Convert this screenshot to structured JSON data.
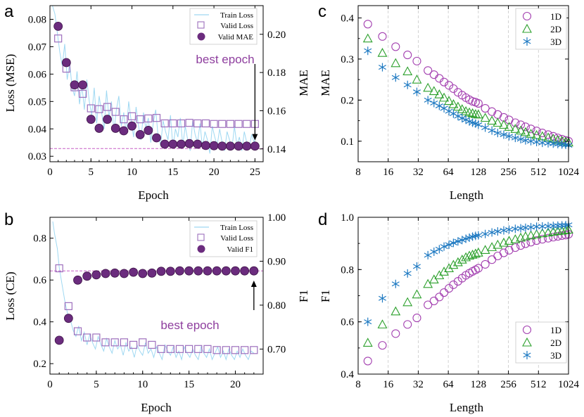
{
  "colors": {
    "purple": "#7a3b8f",
    "marker_fill": "#6b2c7e",
    "square_edge": "#9d6fbd",
    "train_line": "#9fd8f2",
    "hline": "#c65fc6",
    "arrow": "#000000",
    "annot": "#8e3e9e",
    "green": "#2ca02c",
    "blue": "#1f7ac2",
    "circle_edge": "#a33fb0",
    "vgrid": "#c8c8c8"
  },
  "chart_data": [
    {
      "panel": "a",
      "type": "line+scatter",
      "xlabel": "Epoch",
      "ylabel_left": "Loss (MSE)",
      "ylabel_right": "MAE",
      "xlim": [
        0,
        26
      ],
      "ylim_left": [
        0.028,
        0.085
      ],
      "ylim_right": [
        0.1333,
        0.215
      ],
      "xticks": [
        0,
        5,
        10,
        15,
        20,
        25
      ],
      "yticks_left": [
        0.03,
        0.04,
        0.05,
        0.06,
        0.07,
        0.08
      ],
      "yticks_right": [
        0.14,
        0.16,
        0.18,
        0.2
      ],
      "legend": [
        "Train Loss",
        "Valid Loss",
        "Valid MAE"
      ],
      "epochs": [
        1,
        2,
        3,
        4,
        5,
        6,
        7,
        8,
        9,
        10,
        11,
        12,
        13,
        14,
        15,
        16,
        17,
        18,
        19,
        20,
        21,
        22,
        23,
        24,
        25
      ],
      "valid_loss": [
        0.073,
        0.062,
        0.0552,
        0.0528,
        0.0475,
        0.0472,
        0.048,
        0.0462,
        0.0435,
        0.0446,
        0.0435,
        0.0438,
        0.044,
        0.042,
        0.042,
        0.042,
        0.0422,
        0.042,
        0.042,
        0.0418,
        0.0418,
        0.0418,
        0.0418,
        0.0418,
        0.0418
      ],
      "valid_mae": [
        0.2042,
        0.1852,
        0.1735,
        0.1735,
        0.1555,
        0.1508,
        0.1555,
        0.1508,
        0.1495,
        0.152,
        0.1475,
        0.1497,
        0.1458,
        0.1425,
        0.1425,
        0.1425,
        0.1428,
        0.1425,
        0.1418,
        0.1417,
        0.1415,
        0.1415,
        0.1415,
        0.1415,
        0.1415
      ],
      "train_loss_x": [
        0.3,
        0.6,
        0.9,
        1.2,
        1.5,
        1.8,
        2.1,
        2.4,
        2.7,
        3.0,
        3.3,
        3.6,
        3.9,
        4.2,
        4.5,
        4.8,
        5.1,
        5.4,
        5.7,
        6.0,
        6.3,
        6.6,
        6.9,
        7.2,
        7.5,
        7.8,
        8.1,
        8.4,
        8.7,
        9.0,
        9.3,
        9.6,
        9.9,
        10.2,
        10.5,
        10.8,
        11.1,
        11.4,
        11.7,
        12.0,
        12.3,
        12.6,
        12.9,
        13.2,
        13.5,
        13.8,
        14.1,
        14.4,
        14.7,
        15.0,
        15.3,
        15.6,
        15.9,
        16.2,
        16.5,
        16.8,
        17.1,
        17.4,
        17.7,
        18.0,
        18.3,
        18.6,
        18.9,
        19.2,
        19.5,
        19.8,
        20.1,
        20.4,
        20.7,
        21.0,
        21.3,
        21.6,
        21.9,
        22.2,
        22.5,
        22.8,
        23.1,
        23.4,
        23.7,
        24.0,
        24.3,
        24.6,
        24.9,
        25.0
      ],
      "train_loss_y": [
        0.085,
        0.082,
        0.075,
        0.068,
        0.063,
        0.071,
        0.058,
        0.064,
        0.055,
        0.052,
        0.061,
        0.049,
        0.056,
        0.047,
        0.058,
        0.05,
        0.045,
        0.055,
        0.042,
        0.052,
        0.046,
        0.04,
        0.054,
        0.044,
        0.05,
        0.039,
        0.047,
        0.052,
        0.041,
        0.046,
        0.038,
        0.05,
        0.043,
        0.037,
        0.048,
        0.041,
        0.036,
        0.046,
        0.04,
        0.044,
        0.035,
        0.042,
        0.047,
        0.037,
        0.034,
        0.043,
        0.039,
        0.036,
        0.045,
        0.033,
        0.04,
        0.037,
        0.044,
        0.034,
        0.041,
        0.036,
        0.032,
        0.043,
        0.038,
        0.035,
        0.042,
        0.033,
        0.039,
        0.036,
        0.031,
        0.041,
        0.037,
        0.034,
        0.04,
        0.035,
        0.032,
        0.039,
        0.036,
        0.033,
        0.041,
        0.034,
        0.037,
        0.032,
        0.039,
        0.035,
        0.033,
        0.038,
        0.035,
        0.036
      ],
      "best_line_y": 0.0328,
      "annotation": {
        "text": "best epoch",
        "target_epoch": 25,
        "target_y": 0.034
      }
    },
    {
      "panel": "b",
      "type": "line+scatter",
      "xlabel": "Epoch",
      "ylabel_left": "Loss (CE)",
      "ylabel_right": "F1",
      "xlim": [
        0,
        23
      ],
      "ylim_left": [
        0.15,
        0.9
      ],
      "ylim_right": [
        0.643,
        1.0
      ],
      "xticks": [
        0,
        5,
        10,
        15,
        20
      ],
      "yticks_left": [
        0.2,
        0.4,
        0.6,
        0.8
      ],
      "yticks_right": [
        0.7,
        0.8,
        0.9,
        1.0
      ],
      "legend": [
        "Train Loss",
        "Valid Loss",
        "Valid F1"
      ],
      "epochs": [
        1,
        2,
        3,
        4,
        5,
        6,
        7,
        8,
        9,
        10,
        11,
        12,
        13,
        14,
        15,
        16,
        17,
        18,
        19,
        20,
        21,
        22
      ],
      "valid_loss": [
        0.656,
        0.475,
        0.355,
        0.325,
        0.325,
        0.302,
        0.302,
        0.302,
        0.29,
        0.302,
        0.29,
        0.27,
        0.27,
        0.27,
        0.27,
        0.27,
        0.27,
        0.265,
        0.265,
        0.265,
        0.265,
        0.265
      ],
      "valid_f1": [
        0.72,
        0.77,
        0.857,
        0.866,
        0.869,
        0.872,
        0.873,
        0.872,
        0.875,
        0.872,
        0.873,
        0.877,
        0.877,
        0.878,
        0.878,
        0.878,
        0.878,
        0.878,
        0.878,
        0.878,
        0.878,
        0.878
      ],
      "train_loss_x": [
        0.3,
        0.5,
        0.8,
        1.0,
        1.3,
        1.6,
        1.9,
        2.2,
        2.5,
        2.8,
        3.1,
        3.4,
        3.7,
        4.0,
        4.3,
        4.6,
        4.9,
        5.2,
        5.5,
        5.8,
        6.1,
        6.4,
        6.7,
        7.0,
        7.3,
        7.6,
        7.9,
        8.2,
        8.5,
        8.8,
        9.1,
        9.4,
        9.7,
        10.0,
        10.3,
        10.6,
        10.9,
        11.2,
        11.5,
        11.8,
        12.1,
        12.4,
        12.7,
        13.0,
        13.3,
        13.6,
        13.9,
        14.2,
        14.5,
        14.8,
        15.1,
        15.4,
        15.7,
        16.0,
        16.3,
        16.6,
        16.9,
        17.2,
        17.5,
        17.8,
        18.1,
        18.4,
        18.7,
        19.0,
        19.3,
        19.6,
        19.9,
        20.2,
        20.5,
        20.8,
        21.1,
        21.4,
        21.7,
        22.0
      ],
      "train_loss_y": [
        0.88,
        0.82,
        0.75,
        0.66,
        0.58,
        0.5,
        0.44,
        0.41,
        0.36,
        0.33,
        0.38,
        0.31,
        0.35,
        0.29,
        0.34,
        0.3,
        0.27,
        0.33,
        0.29,
        0.26,
        0.32,
        0.28,
        0.25,
        0.31,
        0.27,
        0.29,
        0.24,
        0.3,
        0.26,
        0.28,
        0.23,
        0.29,
        0.26,
        0.24,
        0.3,
        0.25,
        0.27,
        0.23,
        0.28,
        0.25,
        0.22,
        0.29,
        0.26,
        0.24,
        0.28,
        0.23,
        0.26,
        0.22,
        0.28,
        0.25,
        0.23,
        0.27,
        0.24,
        0.22,
        0.28,
        0.25,
        0.23,
        0.27,
        0.22,
        0.25,
        0.28,
        0.23,
        0.26,
        0.22,
        0.27,
        0.24,
        0.22,
        0.26,
        0.23,
        0.27,
        0.24,
        0.22,
        0.26,
        0.25
      ],
      "best_line_y": 0.878,
      "annotation": {
        "text": "best epoch",
        "target_epoch": 22,
        "target_y": 0.872
      }
    },
    {
      "panel": "c",
      "type": "scatter",
      "xscale": "log2",
      "xlabel": "Length",
      "ylabel": "MAE",
      "xlim": [
        8,
        1024
      ],
      "ylim": [
        0.05,
        0.43
      ],
      "xtick_values": [
        8,
        16,
        32,
        64,
        128,
        256,
        512,
        1024
      ],
      "xtick_labels": [
        "8",
        "16",
        "32",
        "64",
        "128",
        "256",
        "512",
        "1024"
      ],
      "yticks": [
        0.1,
        0.2,
        0.3,
        0.4
      ],
      "legend": [
        "1D",
        "2D",
        "3D"
      ],
      "legend_position": "top-right",
      "x": [
        10,
        14,
        19,
        25,
        31,
        40,
        46,
        52,
        58,
        65,
        72,
        80,
        88,
        96,
        104,
        112,
        120,
        128,
        150,
        175,
        200,
        230,
        260,
        300,
        340,
        380,
        430,
        490,
        560,
        640,
        720,
        800,
        880,
        960,
        1024
      ],
      "series": [
        {
          "name": "1D",
          "marker": "circle",
          "values": [
            0.385,
            0.355,
            0.33,
            0.31,
            0.295,
            0.272,
            0.262,
            0.253,
            0.244,
            0.236,
            0.228,
            0.219,
            0.212,
            0.206,
            0.201,
            0.197,
            0.195,
            0.192,
            0.18,
            0.172,
            0.165,
            0.158,
            0.152,
            0.145,
            0.14,
            0.135,
            0.13,
            0.125,
            0.12,
            0.116,
            0.112,
            0.108,
            0.105,
            0.102,
            0.1
          ]
        },
        {
          "name": "2D",
          "marker": "triangle",
          "values": [
            0.35,
            0.315,
            0.29,
            0.27,
            0.25,
            0.23,
            0.222,
            0.214,
            0.206,
            0.198,
            0.19,
            0.184,
            0.178,
            0.173,
            0.17,
            0.168,
            0.166,
            0.165,
            0.157,
            0.15,
            0.145,
            0.14,
            0.135,
            0.13,
            0.126,
            0.122,
            0.118,
            0.115,
            0.112,
            0.109,
            0.106,
            0.103,
            0.101,
            0.099,
            0.097
          ]
        },
        {
          "name": "3D",
          "marker": "asterisk",
          "values": [
            0.32,
            0.28,
            0.255,
            0.237,
            0.22,
            0.2,
            0.193,
            0.186,
            0.18,
            0.173,
            0.167,
            0.161,
            0.156,
            0.152,
            0.148,
            0.145,
            0.143,
            0.14,
            0.133,
            0.126,
            0.12,
            0.116,
            0.112,
            0.108,
            0.105,
            0.102,
            0.1,
            0.098,
            0.096,
            0.095,
            0.094,
            0.093,
            0.092,
            0.091,
            0.09
          ]
        }
      ]
    },
    {
      "panel": "d",
      "type": "scatter",
      "xscale": "log2",
      "xlabel": "Length",
      "ylabel": "F1",
      "xlim": [
        8,
        1024
      ],
      "ylim": [
        0.4,
        1.0
      ],
      "xtick_values": [
        8,
        16,
        32,
        64,
        128,
        256,
        512,
        1024
      ],
      "xtick_labels": [
        "8",
        "16",
        "32",
        "64",
        "128",
        "256",
        "512",
        "1024"
      ],
      "yticks": [
        0.4,
        0.6,
        0.8,
        1.0
      ],
      "legend": [
        "1D",
        "2D",
        "3D"
      ],
      "legend_position": "bottom-right",
      "x": [
        10,
        14,
        19,
        25,
        31,
        40,
        46,
        52,
        58,
        65,
        72,
        80,
        88,
        96,
        104,
        112,
        120,
        128,
        150,
        175,
        200,
        230,
        260,
        300,
        340,
        380,
        430,
        490,
        560,
        640,
        720,
        800,
        880,
        960,
        1024
      ],
      "series": [
        {
          "name": "1D",
          "marker": "circle",
          "values": [
            0.45,
            0.51,
            0.555,
            0.59,
            0.615,
            0.665,
            0.68,
            0.695,
            0.712,
            0.728,
            0.742,
            0.755,
            0.767,
            0.778,
            0.786,
            0.793,
            0.799,
            0.805,
            0.82,
            0.838,
            0.852,
            0.864,
            0.874,
            0.884,
            0.892,
            0.899,
            0.905,
            0.911,
            0.916,
            0.92,
            0.924,
            0.927,
            0.93,
            0.932,
            0.935
          ]
        },
        {
          "name": "2D",
          "marker": "triangle",
          "values": [
            0.52,
            0.59,
            0.64,
            0.675,
            0.705,
            0.745,
            0.762,
            0.778,
            0.792,
            0.805,
            0.818,
            0.828,
            0.838,
            0.847,
            0.853,
            0.857,
            0.861,
            0.865,
            0.875,
            0.886,
            0.895,
            0.903,
            0.91,
            0.916,
            0.922,
            0.927,
            0.931,
            0.935,
            0.939,
            0.942,
            0.945,
            0.947,
            0.949,
            0.951,
            0.953
          ]
        },
        {
          "name": "3D",
          "marker": "asterisk",
          "values": [
            0.6,
            0.69,
            0.745,
            0.785,
            0.812,
            0.855,
            0.868,
            0.878,
            0.888,
            0.895,
            0.902,
            0.908,
            0.913,
            0.918,
            0.922,
            0.926,
            0.929,
            0.931,
            0.936,
            0.942,
            0.946,
            0.95,
            0.953,
            0.956,
            0.958,
            0.96,
            0.962,
            0.964,
            0.965,
            0.966,
            0.967,
            0.968,
            0.969,
            0.97,
            0.971
          ]
        }
      ]
    }
  ]
}
